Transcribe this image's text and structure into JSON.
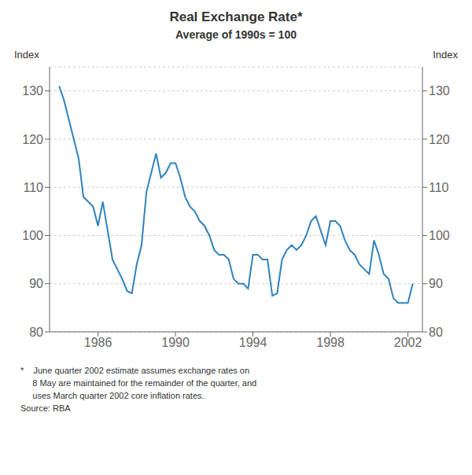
{
  "chart_data": {
    "type": "line",
    "title": "Real Exchange Rate*",
    "subtitle": "Average of 1990s = 100",
    "ylabel": "Index",
    "y2label": "Index",
    "annotations": [
      "*    June quarter 2002 estimate assumes exchange rates on",
      "     8 May are maintained for the remainder of the quarter, and",
      "     uses March quarter 2002 core inflation rates.",
      "Source: RBA"
    ],
    "x": [
      1984.0,
      1984.25,
      1984.5,
      1984.75,
      1985.0,
      1985.25,
      1985.5,
      1985.75,
      1986.0,
      1986.25,
      1986.5,
      1986.75,
      1987.0,
      1987.25,
      1987.5,
      1987.75,
      1988.0,
      1988.25,
      1988.5,
      1988.75,
      1989.0,
      1989.25,
      1989.5,
      1989.75,
      1990.0,
      1990.25,
      1990.5,
      1990.75,
      1991.0,
      1991.25,
      1991.5,
      1991.75,
      1992.0,
      1992.25,
      1992.5,
      1992.75,
      1993.0,
      1993.25,
      1993.5,
      1993.75,
      1994.0,
      1994.25,
      1994.5,
      1994.75,
      1995.0,
      1995.25,
      1995.5,
      1995.75,
      1996.0,
      1996.25,
      1996.5,
      1996.75,
      1997.0,
      1997.25,
      1997.5,
      1997.75,
      1998.0,
      1998.25,
      1998.5,
      1998.75,
      1999.0,
      1999.25,
      1999.5,
      1999.75,
      2000.0,
      2000.25,
      2000.5,
      2000.75,
      2001.0,
      2001.25,
      2001.5,
      2001.75,
      2002.0,
      2002.25
    ],
    "values": [
      131,
      128,
      124,
      120,
      116,
      108,
      107,
      106,
      102,
      107,
      101,
      95,
      93,
      91,
      88.5,
      88,
      94,
      98,
      109,
      113,
      117,
      112,
      113,
      115,
      115,
      112,
      108,
      106,
      105,
      103,
      102,
      100,
      97,
      96,
      96,
      95,
      91,
      90,
      90,
      89,
      96,
      96,
      95,
      95,
      87.5,
      88,
      95,
      97,
      98,
      97,
      98,
      100,
      103,
      104,
      101,
      98,
      103,
      103,
      102,
      99,
      97,
      96,
      94,
      93,
      92,
      99,
      96,
      92,
      91,
      87,
      86,
      86,
      86,
      90
    ],
    "xlim": [
      1983.5,
      2002.75
    ],
    "xticks": [
      1986,
      1990,
      1994,
      1998,
      2002
    ],
    "ylim": [
      80,
      135
    ],
    "yticks": [
      80,
      90,
      100,
      110,
      120,
      130
    ],
    "y2lim": [
      80,
      135
    ],
    "y2ticks": [
      80,
      90,
      100,
      110,
      120,
      130
    ],
    "grid": "y"
  }
}
